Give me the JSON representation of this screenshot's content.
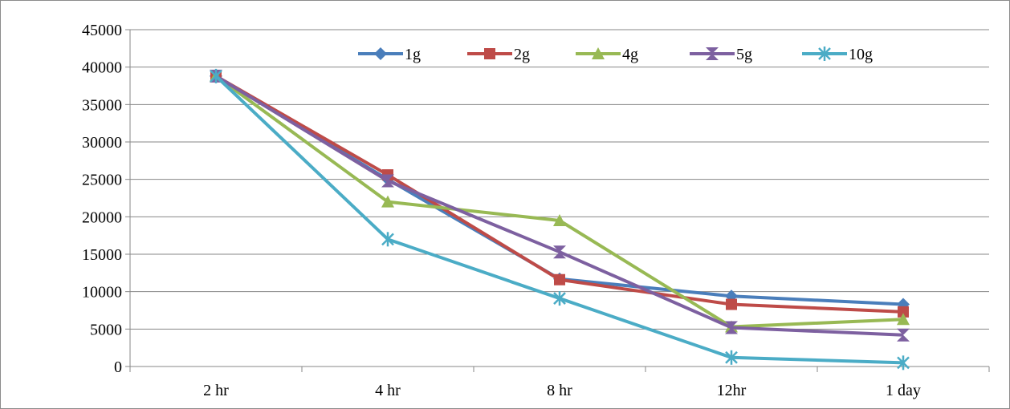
{
  "chart_data": {
    "type": "line",
    "title": "",
    "xlabel": "",
    "ylabel": "",
    "categories": [
      "2 hr",
      "4 hr",
      "8 hr",
      "12hr",
      "1 day"
    ],
    "ylim": [
      0,
      45000
    ],
    "yticks": [
      0,
      5000,
      10000,
      15000,
      20000,
      25000,
      30000,
      35000,
      40000,
      45000
    ],
    "grid": "horizontal",
    "legend_position": "top",
    "series": [
      {
        "name": "1g",
        "color": "#4a7ebb",
        "marker": "diamond",
        "values": [
          38800,
          25000,
          11700,
          9400,
          8300
        ]
      },
      {
        "name": "2g",
        "color": "#be4b48",
        "marker": "square",
        "values": [
          38800,
          25600,
          11600,
          8300,
          7300
        ]
      },
      {
        "name": "4g",
        "color": "#98b954",
        "marker": "triangle",
        "values": [
          38800,
          22000,
          19500,
          5300,
          6300
        ]
      },
      {
        "name": "5g",
        "color": "#7d60a0",
        "marker": "hourglass",
        "values": [
          38800,
          24800,
          15300,
          5200,
          4200
        ]
      },
      {
        "name": "10g",
        "color": "#4bacc6",
        "marker": "x-star",
        "values": [
          38800,
          17000,
          9100,
          1200,
          500
        ]
      }
    ]
  }
}
